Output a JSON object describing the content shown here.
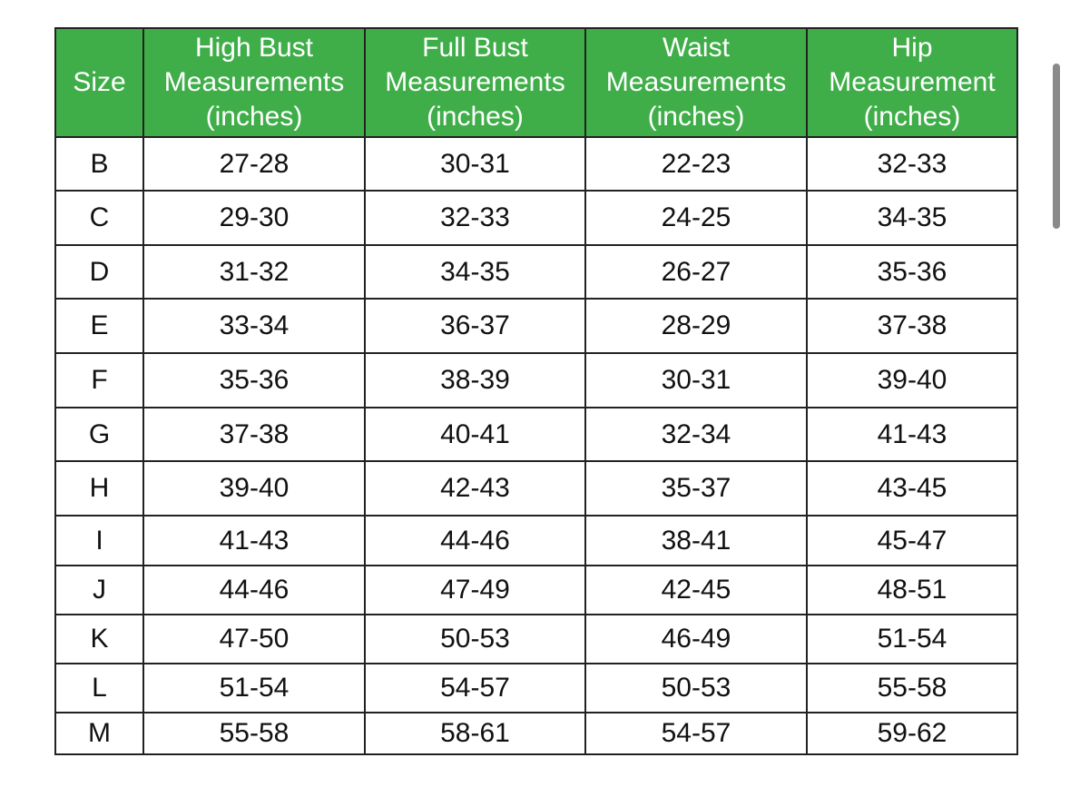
{
  "table": {
    "header_color": "#3fae49",
    "headers": [
      "Size",
      "High Bust\nMeasurements\n(inches)",
      "Full Bust\nMeasurements\n(inches)",
      "Waist\nMeasurements\n(inches)",
      "Hip\nMeasurement\n(inches)"
    ],
    "rows": [
      [
        "B",
        "27-28",
        "30-31",
        "22-23",
        "32-33"
      ],
      [
        "C",
        "29-30",
        "32-33",
        "24-25",
        "34-35"
      ],
      [
        "D",
        "31-32",
        "34-35",
        "26-27",
        "35-36"
      ],
      [
        "E",
        "33-34",
        "36-37",
        "28-29",
        "37-38"
      ],
      [
        "F",
        "35-36",
        "38-39",
        "30-31",
        "39-40"
      ],
      [
        "G",
        "37-38",
        "40-41",
        "32-34",
        "41-43"
      ],
      [
        "H",
        "39-40",
        "42-43",
        "35-37",
        "43-45"
      ],
      [
        "I",
        "41-43",
        "44-46",
        "38-41",
        "45-47"
      ],
      [
        "J",
        "44-46",
        "47-49",
        "42-45",
        "48-51"
      ],
      [
        "K",
        "47-50",
        "50-53",
        "46-49",
        "51-54"
      ],
      [
        "L",
        "51-54",
        "54-57",
        "50-53",
        "55-58"
      ],
      [
        "M",
        "55-58",
        "58-61",
        "54-57",
        "59-62"
      ]
    ]
  }
}
